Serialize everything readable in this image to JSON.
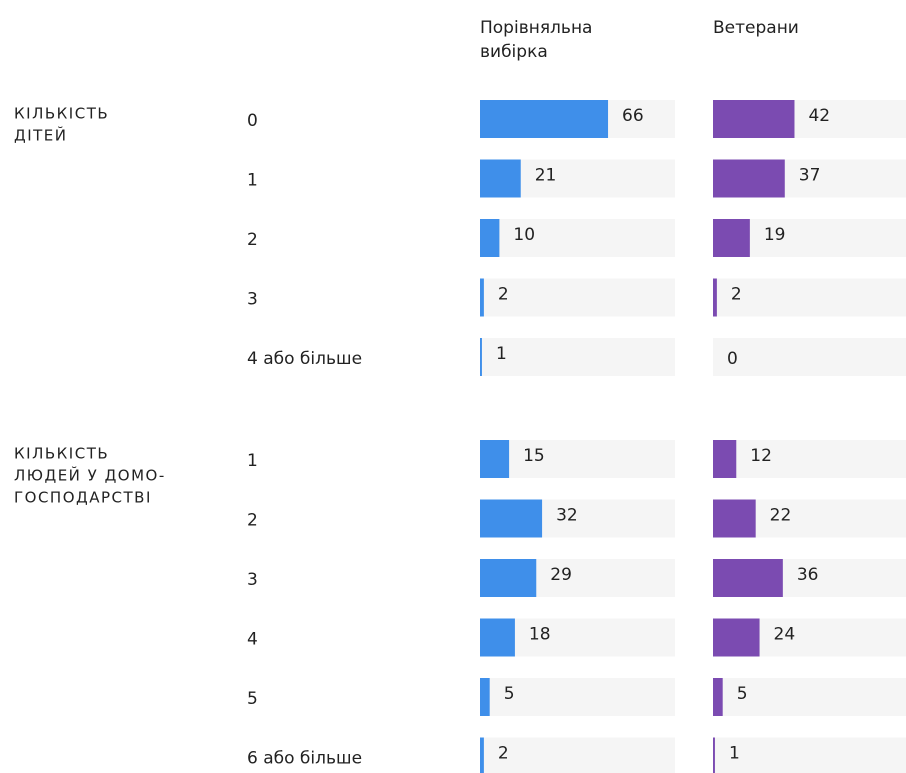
{
  "chart_data": {
    "type": "bar",
    "xlim": [
      0,
      100
    ],
    "series": [
      {
        "name": "Порівняльна вибірка",
        "color": "#3f8fea"
      },
      {
        "name": "Ветерани",
        "color": "#7b4bb1"
      }
    ],
    "groups": [
      {
        "title": [
          "КІЛЬКІСТЬ",
          "ДІТЕЙ"
        ],
        "categories": [
          "0",
          "1",
          "2",
          "3",
          "4 або більше"
        ],
        "series": [
          {
            "values": [
              66,
              21,
              10,
              2,
              1
            ]
          },
          {
            "values": [
              42,
              37,
              19,
              2,
              0
            ]
          }
        ]
      },
      {
        "title": [
          "КІЛЬКІСТЬ",
          "ЛЮДЕЙ У ДОМО-",
          "ГОСПОДАРСТВІ"
        ],
        "categories": [
          "1",
          "2",
          "3",
          "4",
          "5",
          "6 або більше"
        ],
        "series": [
          {
            "values": [
              15,
              32,
              29,
              18,
              5,
              2
            ]
          },
          {
            "values": [
              12,
              22,
              36,
              24,
              5,
              1
            ]
          }
        ]
      }
    ]
  }
}
